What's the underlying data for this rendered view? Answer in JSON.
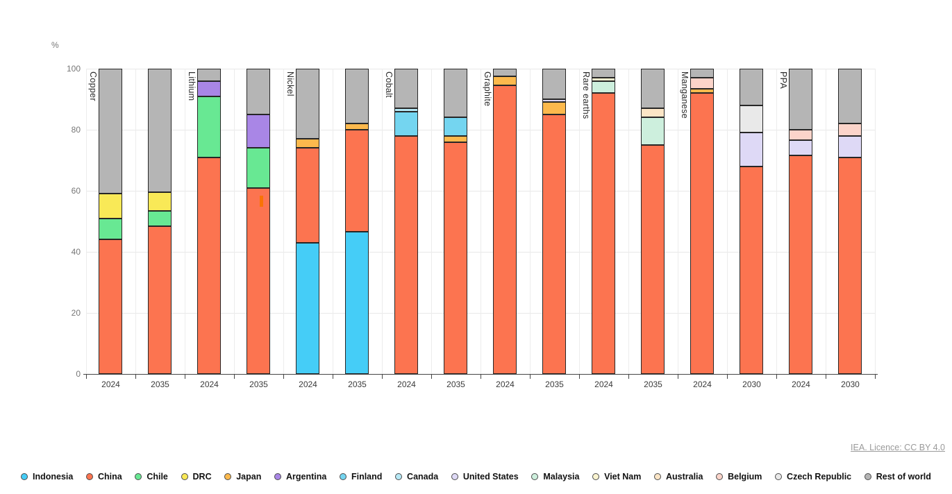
{
  "chart": {
    "unit_label": "%",
    "attribution": "IEA. Licence: CC BY 4.0",
    "y_ticks": [
      0,
      20,
      40,
      60,
      80,
      100
    ]
  },
  "legend": [
    {
      "label": "Indonesia",
      "color": "#45cdf7"
    },
    {
      "label": "China",
      "color": "#fc7450"
    },
    {
      "label": "Chile",
      "color": "#68e893"
    },
    {
      "label": "DRC",
      "color": "#f9e957"
    },
    {
      "label": "Japan",
      "color": "#fcb94d"
    },
    {
      "label": "Argentina",
      "color": "#a986e6"
    },
    {
      "label": "Finland",
      "color": "#74d5f0"
    },
    {
      "label": "Canada",
      "color": "#b6e8f5"
    },
    {
      "label": "United States",
      "color": "#ded9f6"
    },
    {
      "label": "Malaysia",
      "color": "#cdefdd"
    },
    {
      "label": "Viet Nam",
      "color": "#faf4d0"
    },
    {
      "label": "Australia",
      "color": "#fbe5c6"
    },
    {
      "label": "Belgium",
      "color": "#fbd4ca"
    },
    {
      "label": "Czech Republic",
      "color": "#e9e9e9"
    },
    {
      "label": "Rest of world",
      "color": "#b5b5b5"
    }
  ],
  "chart_data": {
    "type": "bar",
    "stacked": true,
    "ylabel": "%",
    "ylim": [
      0,
      100
    ],
    "grid": true,
    "legend_position": "bottom",
    "groups": [
      {
        "label": "Copper",
        "bars": [
          {
            "year": "2024",
            "segments": [
              [
                "China",
                44
              ],
              [
                "Chile",
                7
              ],
              [
                "DRC",
                8
              ],
              [
                "Rest of world",
                41
              ]
            ]
          },
          {
            "year": "2035",
            "segments": [
              [
                "China",
                48.5
              ],
              [
                "Chile",
                5
              ],
              [
                "DRC",
                6
              ],
              [
                "Rest of world",
                40.5
              ]
            ]
          }
        ]
      },
      {
        "label": "Lithium",
        "bars": [
          {
            "year": "2024",
            "segments": [
              [
                "China",
                71
              ],
              [
                "Chile",
                20
              ],
              [
                "Argentina",
                5
              ],
              [
                "Rest of world",
                4
              ]
            ]
          },
          {
            "year": "2035",
            "segments": [
              [
                "China",
                61
              ],
              [
                "Chile",
                13
              ],
              [
                "Argentina",
                11
              ],
              [
                "Rest of world",
                15
              ]
            ]
          }
        ]
      },
      {
        "label": "Nickel",
        "bars": [
          {
            "year": "2024",
            "segments": [
              [
                "Indonesia",
                43
              ],
              [
                "China",
                31
              ],
              [
                "Japan",
                3
              ],
              [
                "Rest of world",
                23
              ]
            ]
          },
          {
            "year": "2035",
            "segments": [
              [
                "Indonesia",
                46.5
              ],
              [
                "China",
                33.5
              ],
              [
                "Japan",
                2
              ],
              [
                "Rest of world",
                18
              ]
            ]
          }
        ]
      },
      {
        "label": "Cobalt",
        "bars": [
          {
            "year": "2024",
            "segments": [
              [
                "China",
                78
              ],
              [
                "Finland",
                8
              ],
              [
                "Canada",
                1
              ],
              [
                "Rest of world",
                13
              ]
            ]
          },
          {
            "year": "2035",
            "segments": [
              [
                "China",
                76
              ],
              [
                "Japan",
                2
              ],
              [
                "Finland",
                6
              ],
              [
                "Rest of world",
                16
              ]
            ]
          }
        ]
      },
      {
        "label": "Graphite",
        "bars": [
          {
            "year": "2024",
            "segments": [
              [
                "China",
                94.5
              ],
              [
                "Japan",
                3
              ],
              [
                "Rest of world",
                2.5
              ]
            ]
          },
          {
            "year": "2035",
            "segments": [
              [
                "China",
                85
              ],
              [
                "Japan",
                4
              ],
              [
                "United States",
                1
              ],
              [
                "Rest of world",
                10
              ]
            ]
          }
        ]
      },
      {
        "label": "Rare earths",
        "bars": [
          {
            "year": "2024",
            "segments": [
              [
                "China",
                92
              ],
              [
                "Malaysia",
                4
              ],
              [
                "Viet Nam",
                1
              ],
              [
                "Rest of world",
                3
              ]
            ]
          },
          {
            "year": "2035",
            "segments": [
              [
                "China",
                75
              ],
              [
                "Malaysia",
                9
              ],
              [
                "Australia",
                3
              ],
              [
                "Rest of world",
                13
              ]
            ]
          }
        ]
      },
      {
        "label": "Manganese",
        "bars": [
          {
            "year": "2024",
            "segments": [
              [
                "China",
                92
              ],
              [
                "Japan",
                1.5
              ],
              [
                "Belgium",
                3.5
              ],
              [
                "Rest of world",
                3
              ]
            ]
          },
          {
            "year": "2030",
            "segments": [
              [
                "China",
                68
              ],
              [
                "United States",
                11
              ],
              [
                "Czech Republic",
                9
              ],
              [
                "Rest of world",
                12
              ]
            ]
          }
        ]
      },
      {
        "label": "PPA",
        "bars": [
          {
            "year": "2024",
            "segments": [
              [
                "China",
                71.5
              ],
              [
                "United States",
                5
              ],
              [
                "Belgium",
                3.5
              ],
              [
                "Rest of world",
                20
              ]
            ]
          },
          {
            "year": "2030",
            "segments": [
              [
                "China",
                71
              ],
              [
                "United States",
                7
              ],
              [
                "Belgium",
                4
              ],
              [
                "Rest of world",
                18
              ]
            ]
          }
        ]
      }
    ]
  }
}
